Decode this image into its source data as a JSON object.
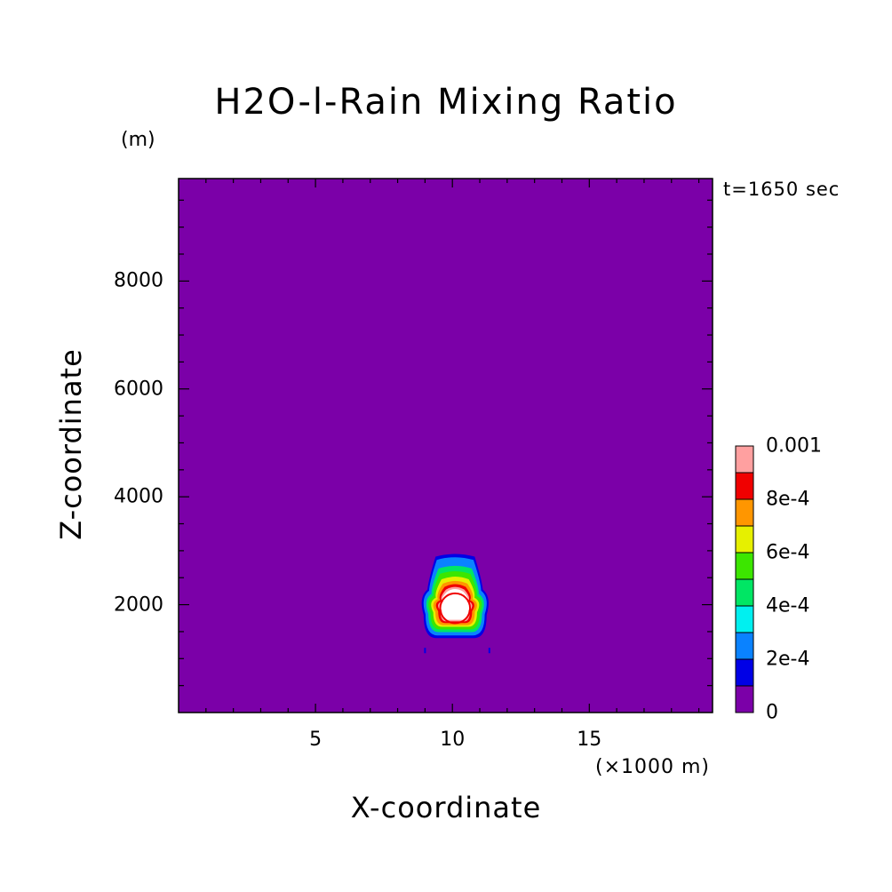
{
  "chart_data": {
    "type": "contour",
    "title": "H2O-l-Rain Mixing Ratio",
    "time_label": "t=1650 sec",
    "xlabel": "X-coordinate",
    "xunit": "(×1000 m)",
    "ylabel": "Z-coordinate",
    "yunit": "(m)",
    "xlim": [
      0,
      19.5
    ],
    "ylim": [
      0,
      9900
    ],
    "xticks": [
      5,
      10,
      15
    ],
    "xtick_labels": [
      "5",
      "10",
      "15"
    ],
    "yticks": [
      2000,
      4000,
      6000,
      8000
    ],
    "ytick_labels": [
      "2000",
      "4000",
      "6000",
      "8000"
    ],
    "background_color": "#7B00A8",
    "colorbar": {
      "levels": [
        0,
        0.0001,
        0.0002,
        0.0003,
        0.0004,
        0.0005,
        0.0006,
        0.0007,
        0.0008,
        0.0009,
        0.001
      ],
      "colors": [
        "#7B00A8",
        "#0000E6",
        "#0A82FF",
        "#00F0F0",
        "#00E664",
        "#3CE600",
        "#E6F000",
        "#FF9600",
        "#F00000",
        "#FFA0A0"
      ],
      "tick_labels": [
        "0",
        "2e-4",
        "4e-4",
        "6e-4",
        "8e-4",
        "0.001"
      ]
    },
    "feature": {
      "description_values": "single rain core",
      "center_x": 10.1,
      "center_z": 1950,
      "max_value_exceeds": 0.001
    }
  }
}
